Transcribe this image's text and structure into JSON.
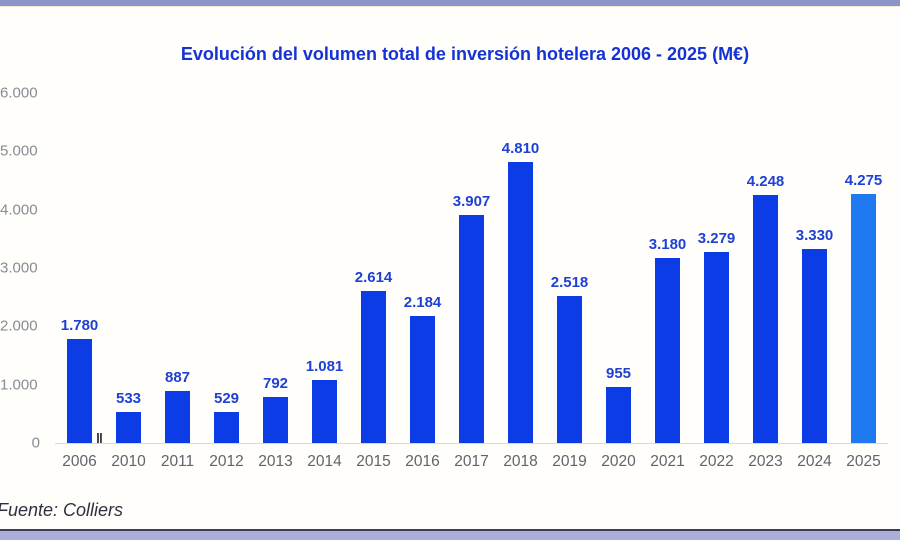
{
  "page": {
    "title": "Evolución del volumen total de inversión hotelera 2006 - 2025 (M€)",
    "source": "Fuente: Colliers"
  },
  "colors": {
    "bar": "#0c3ce6",
    "bar_highlight": "#1f7af2",
    "title_text": "#1533d4",
    "value_label": "#1e41d4",
    "axis_label": "#5f646d",
    "y_tick_label": "#888c95",
    "axis_line": "#d8d8d8",
    "top_band": "#8c95ca",
    "bottom_band": "#a9afd9"
  },
  "chart_data": {
    "type": "bar",
    "title": "Evolución del volumen total de inversión hotelera 2006 - 2025 (M€)",
    "unit": "M€",
    "categories": [
      "2006",
      "2010",
      "2011",
      "2012",
      "2013",
      "2014",
      "2015",
      "2016",
      "2017",
      "2018",
      "2019",
      "2020",
      "2021",
      "2022",
      "2023",
      "2024",
      "2025"
    ],
    "values": [
      1780,
      533,
      887,
      529,
      792,
      1081,
      2614,
      2184,
      3907,
      4810,
      2518,
      955,
      3180,
      3279,
      4248,
      3330,
      4275
    ],
    "value_labels": [
      "1.780",
      "533",
      "887",
      "529",
      "792",
      "1.081",
      "2.614",
      "2.184",
      "3.907",
      "4.810",
      "2.518",
      "955",
      "3.180",
      "3.279",
      "4.248",
      "3.330",
      "4.275"
    ],
    "highlight_category": "2025",
    "y_ticks_labels": [
      "6.000",
      "5.000",
      "4.000",
      "3.000",
      "2.000",
      "1.000",
      "0"
    ],
    "y_ticks_values": [
      6000,
      5000,
      4000,
      3000,
      2000,
      1000,
      0
    ],
    "ylim": [
      0,
      6000
    ],
    "xlabel": "",
    "ylabel": "",
    "grid": false,
    "legend": "none",
    "axis_break_after_category": "2006",
    "axis_break_glyph": "‖",
    "source": "Fuente: Colliers"
  }
}
